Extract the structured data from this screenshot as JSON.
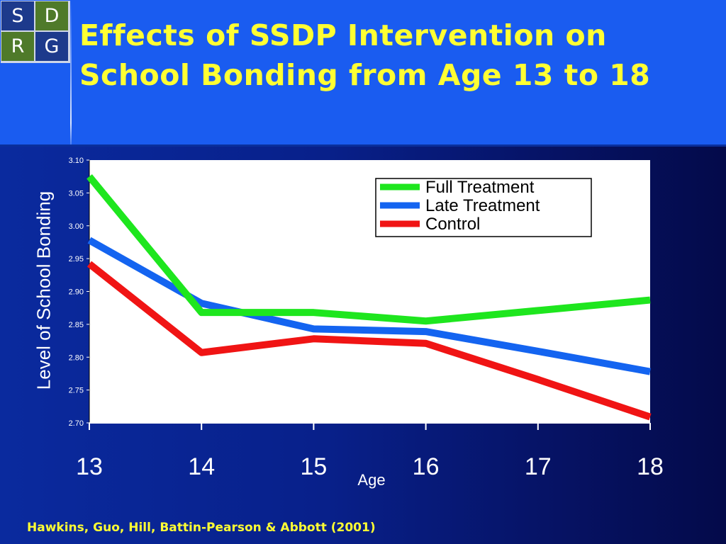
{
  "logo": {
    "letters": [
      "S",
      "D",
      "R",
      "G"
    ],
    "colors": [
      "#1d3a8c",
      "#4f7a2a",
      "#4f7a2a",
      "#1d3a8c"
    ]
  },
  "slide": {
    "title_line1": "Effects of SSDP Intervention on",
    "title_line2": "School Bonding from Age 13 to 18",
    "citation": "Hawkins, Guo, Hill, Battin-Pearson & Abbott (2001)"
  },
  "chart_data": {
    "type": "line",
    "xlabel": "Age",
    "ylabel": "Level of School Bonding",
    "x": [
      13,
      14,
      15,
      16,
      17,
      18
    ],
    "xtick_labels": [
      "13",
      "14",
      "15",
      "16",
      "17",
      "18"
    ],
    "ylim": [
      2.7,
      3.1
    ],
    "ytick_labels": [
      "2.70",
      "2.75",
      "2.80",
      "2.85",
      "2.90",
      "2.95",
      "3.00",
      "3.05",
      "3.10"
    ],
    "grid": false,
    "legend_position": "top-right",
    "series": [
      {
        "name": "Full Treatment",
        "color": "#1ee61e",
        "values": [
          3.075,
          2.868,
          2.868,
          2.855,
          2.871,
          2.887
        ]
      },
      {
        "name": "Late Treatment",
        "color": "#1464f0",
        "values": [
          2.978,
          2.882,
          2.843,
          2.839,
          2.809,
          2.778
        ]
      },
      {
        "name": "Control",
        "color": "#f01414",
        "values": [
          2.942,
          2.807,
          2.828,
          2.821,
          2.766,
          2.709
        ]
      }
    ]
  }
}
